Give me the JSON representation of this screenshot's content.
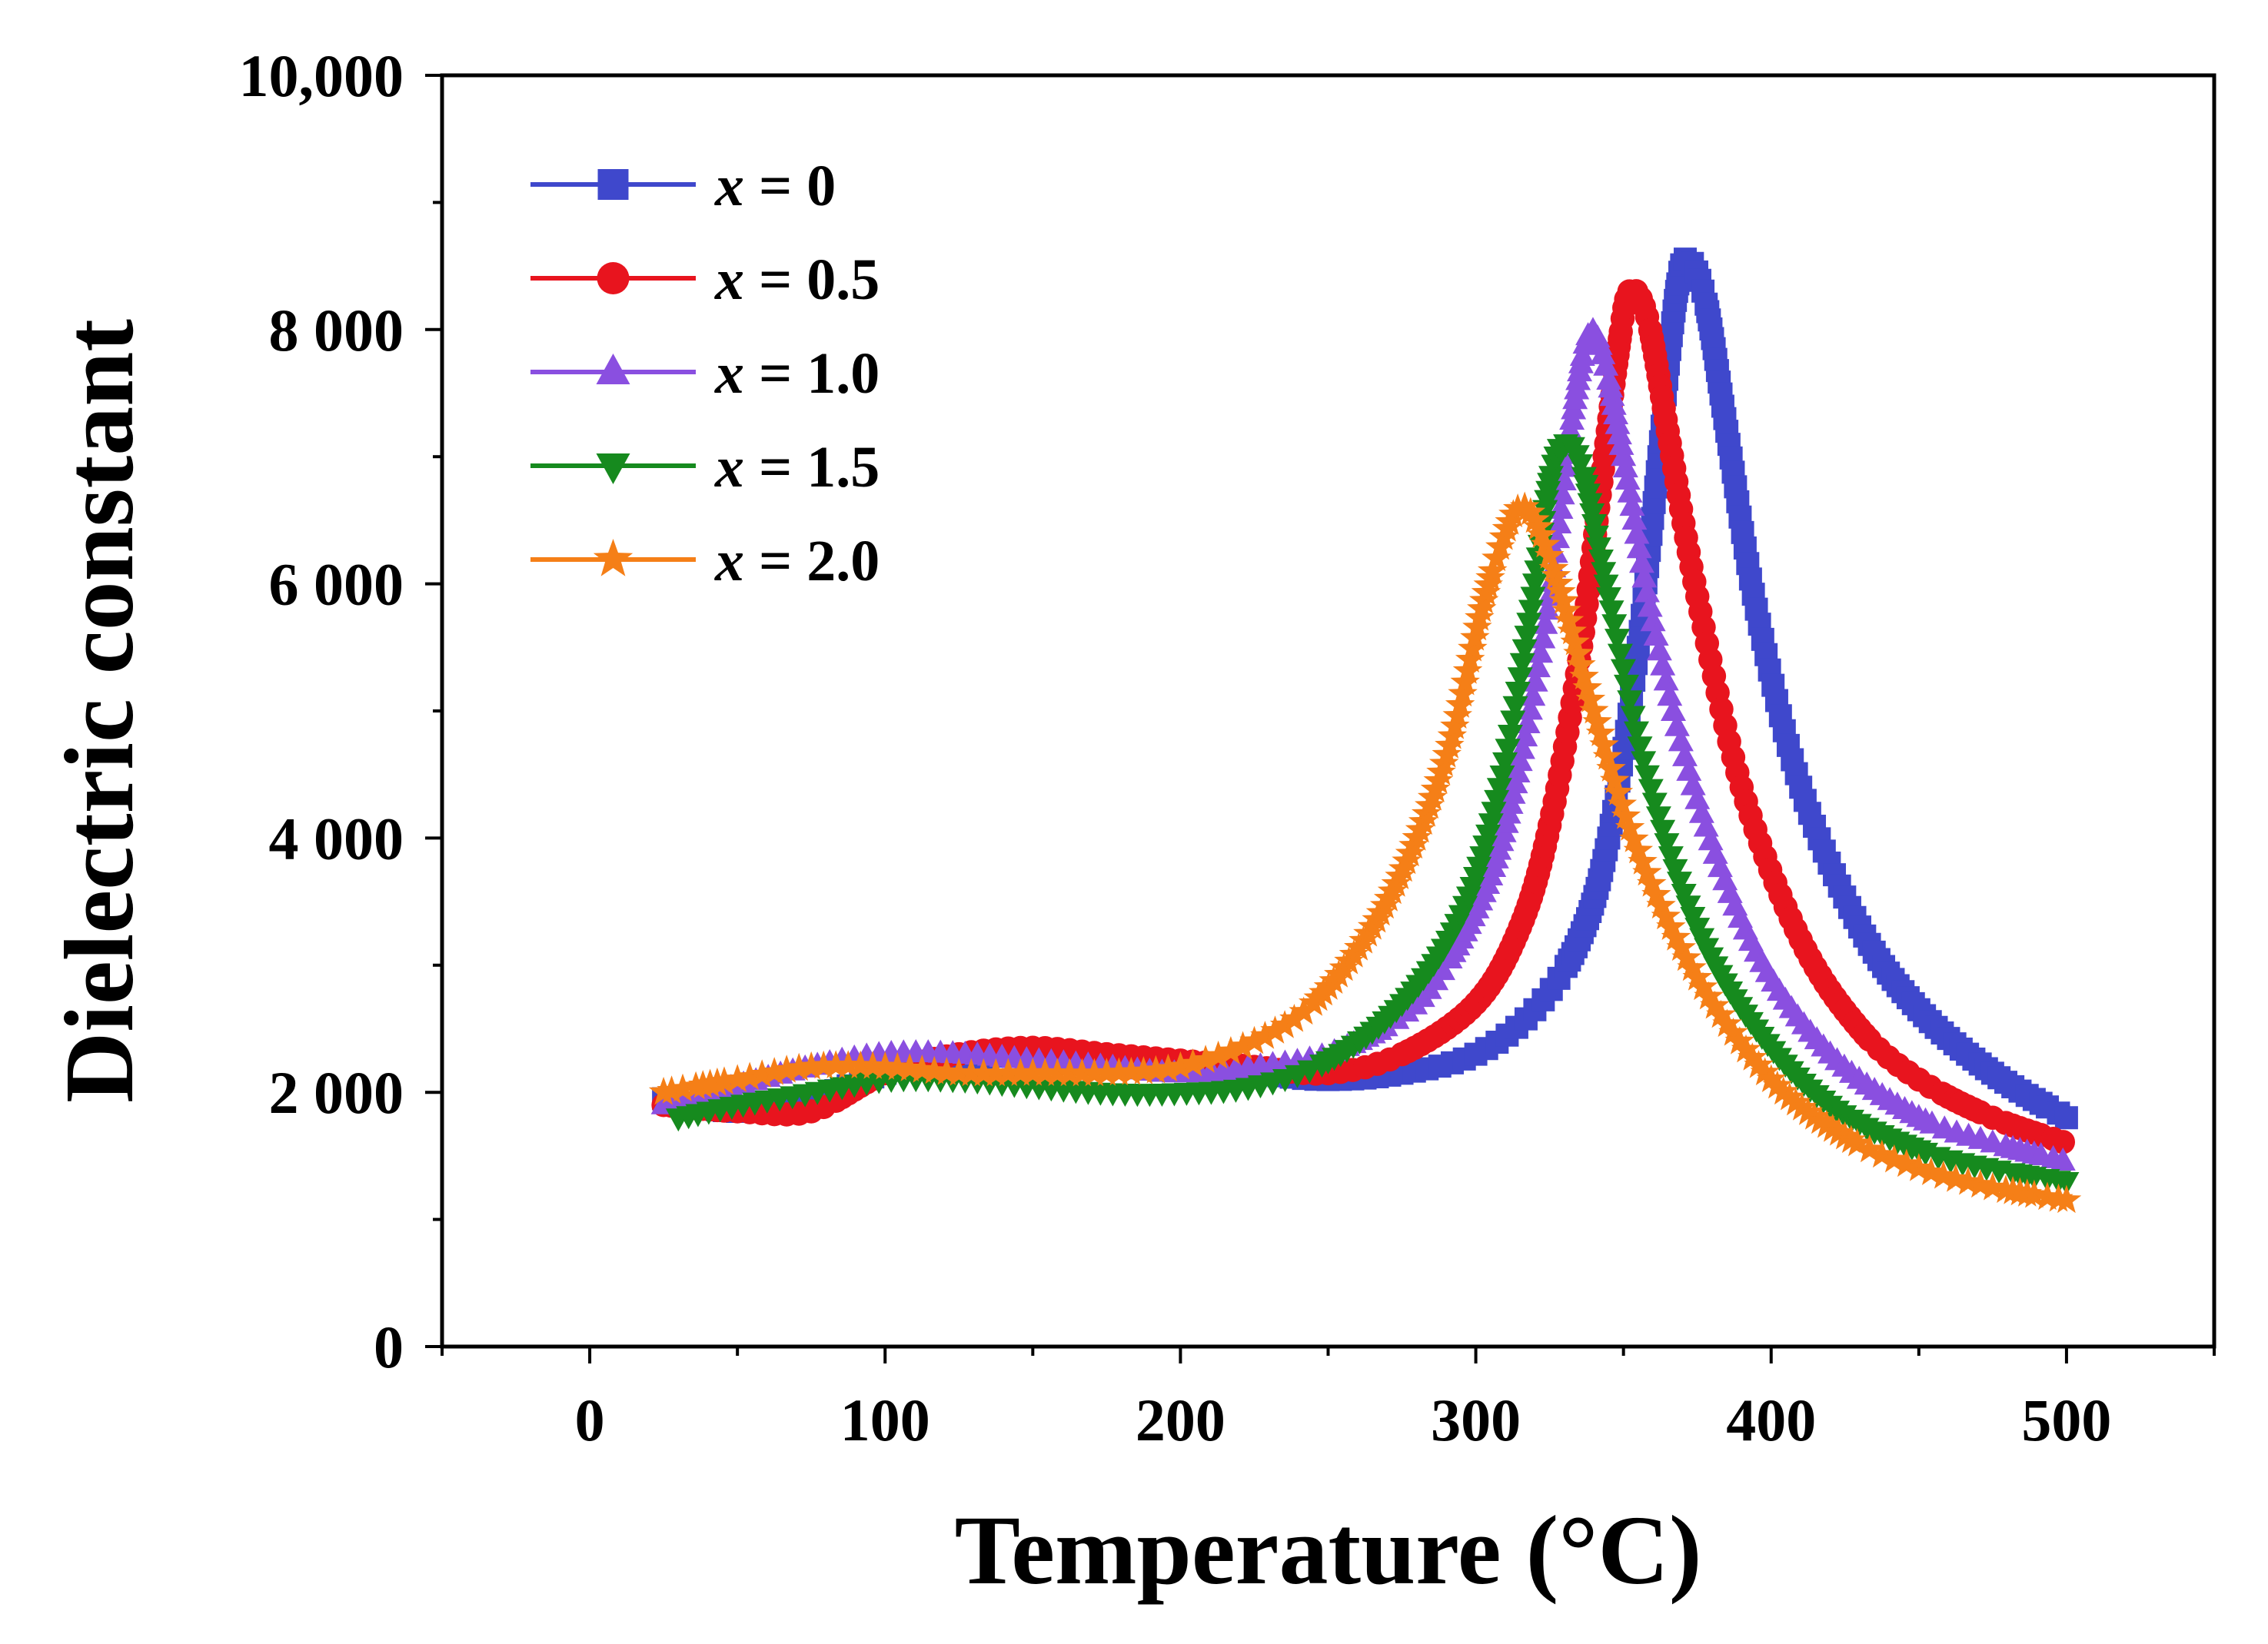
{
  "chart_data": {
    "type": "line",
    "title": "",
    "xlabel": "Temperature (°C)",
    "ylabel": "Dielectric constant",
    "xlim": [
      -50,
      550
    ],
    "ylim": [
      0,
      10000
    ],
    "x_ticks": [
      0,
      100,
      200,
      300,
      400,
      500
    ],
    "x_tick_labels": [
      "0",
      "100",
      "200",
      "300",
      "400",
      "500"
    ],
    "y_ticks": [
      0,
      2000,
      4000,
      6000,
      8000,
      10000
    ],
    "y_tick_labels": [
      "0",
      "2 000",
      "4 000",
      "6 000",
      "8 000",
      "10,000"
    ],
    "legend_position": "top-left",
    "legend_prefix": "x",
    "legend_equals": " = ",
    "grid": false,
    "series": [
      {
        "name": "x = 0",
        "legend_value": "0",
        "color": "#3f48cc",
        "marker": "square",
        "x": [
          25,
          50,
          75,
          100,
          125,
          150,
          175,
          200,
          225,
          250,
          275,
          300,
          320,
          335,
          345,
          355,
          362,
          368,
          372,
          378,
          385,
          395,
          410,
          430,
          450,
          475,
          500
        ],
        "values": [
          1950,
          1850,
          1950,
          2150,
          2250,
          2300,
          2250,
          2200,
          2150,
          2100,
          2150,
          2300,
          2650,
          3200,
          4000,
          5500,
          7000,
          8300,
          8550,
          8200,
          7200,
          5800,
          4400,
          3300,
          2650,
          2150,
          1800
        ]
      },
      {
        "name": "x = 0.5",
        "legend_value": "0.5",
        "color": "#e8141e",
        "marker": "circle",
        "x": [
          25,
          50,
          75,
          100,
          125,
          150,
          175,
          200,
          225,
          250,
          275,
          300,
          315,
          325,
          335,
          342,
          348,
          352,
          358,
          365,
          375,
          390,
          410,
          430,
          450,
          475,
          500
        ],
        "values": [
          1900,
          1850,
          1850,
          2150,
          2300,
          2350,
          2300,
          2250,
          2200,
          2150,
          2300,
          2700,
          3300,
          4100,
          5400,
          6700,
          7800,
          8300,
          8100,
          7200,
          5900,
          4400,
          3200,
          2500,
          2100,
          1800,
          1600
        ]
      },
      {
        "name": "x = 1.0",
        "legend_value": "1.0",
        "color": "#8a4fe0",
        "marker": "triangle-up",
        "x": [
          25,
          50,
          75,
          100,
          125,
          150,
          175,
          200,
          225,
          250,
          275,
          290,
          305,
          315,
          325,
          332,
          338,
          343,
          350,
          360,
          375,
          395,
          420,
          450,
          475,
          500
        ],
        "values": [
          1900,
          2050,
          2200,
          2300,
          2300,
          2250,
          2200,
          2150,
          2200,
          2300,
          2600,
          3000,
          3700,
          4600,
          5900,
          7200,
          7950,
          7800,
          7000,
          5700,
          4300,
          3100,
          2300,
          1800,
          1600,
          1450
        ]
      },
      {
        "name": "x = 1.5",
        "legend_value": "1.5",
        "color": "#168a1e",
        "marker": "triangle-down",
        "x": [
          30,
          50,
          75,
          100,
          125,
          150,
          175,
          200,
          225,
          250,
          275,
          295,
          308,
          318,
          325,
          330,
          336,
          345,
          358,
          375,
          395,
          420,
          450,
          475,
          500
        ],
        "values": [
          1800,
          1900,
          2000,
          2100,
          2100,
          2050,
          2000,
          2000,
          2050,
          2250,
          2700,
          3400,
          4400,
          5700,
          6800,
          7100,
          6900,
          5900,
          4500,
          3300,
          2500,
          1900,
          1550,
          1400,
          1300
        ]
      },
      {
        "name": "x = 2.0",
        "legend_value": "2.0",
        "color": "#f57f17",
        "marker": "star",
        "x": [
          25,
          50,
          75,
          100,
          125,
          150,
          175,
          200,
          225,
          245,
          265,
          280,
          292,
          302,
          310,
          315,
          320,
          328,
          340,
          355,
          375,
          400,
          425,
          450,
          475,
          500
        ],
        "values": [
          2000,
          2100,
          2200,
          2200,
          2150,
          2150,
          2150,
          2200,
          2400,
          2700,
          3300,
          4000,
          4800,
          5800,
          6400,
          6600,
          6500,
          6000,
          5000,
          3900,
          2900,
          2100,
          1650,
          1400,
          1250,
          1150
        ]
      }
    ]
  }
}
